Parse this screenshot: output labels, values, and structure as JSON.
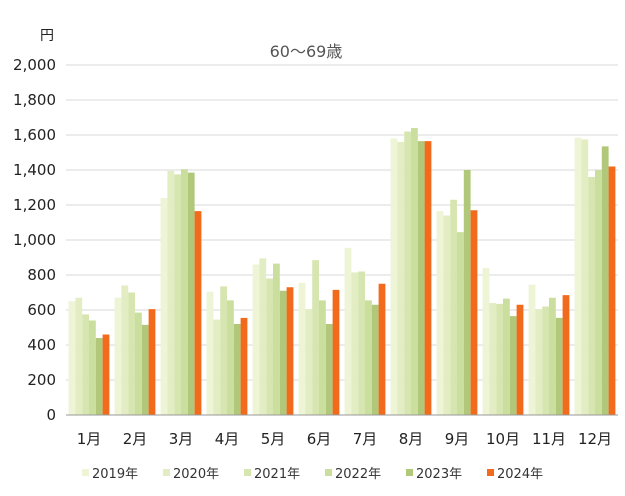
{
  "chart_data": {
    "type": "bar",
    "title": "60～69歳",
    "y_unit": "円",
    "categories": [
      "1月",
      "2月",
      "3月",
      "4月",
      "5月",
      "6月",
      "7月",
      "8月",
      "9月",
      "10月",
      "11月",
      "12月"
    ],
    "ylim": [
      0,
      2000
    ],
    "y_ticks": [
      "0",
      "200",
      "400",
      "600",
      "800",
      "1,000",
      "1,200",
      "1,400",
      "1,600",
      "1,800",
      "2,000"
    ],
    "grid": true,
    "legend_position": "bottom",
    "series": [
      {
        "name": "2019年",
        "color": "#eef4d6",
        "values": [
          650,
          670,
          1240,
          705,
          860,
          755,
          955,
          1580,
          1165,
          840,
          745,
          1585
        ]
      },
      {
        "name": "2020年",
        "color": "#e2edc4",
        "values": [
          670,
          740,
          1395,
          545,
          895,
          605,
          815,
          1560,
          1140,
          640,
          605,
          1575
        ]
      },
      {
        "name": "2021年",
        "color": "#d7e6b0",
        "values": [
          575,
          700,
          1375,
          735,
          780,
          885,
          820,
          1620,
          1230,
          635,
          620,
          1360
        ]
      },
      {
        "name": "2022年",
        "color": "#cadf9d",
        "values": [
          540,
          585,
          1405,
          655,
          865,
          655,
          655,
          1640,
          1045,
          665,
          670,
          1400
        ]
      },
      {
        "name": "2023年",
        "color": "#b1c779",
        "values": [
          440,
          515,
          1385,
          520,
          710,
          520,
          630,
          1565,
          1400,
          565,
          555,
          1535
        ]
      },
      {
        "name": "2024年",
        "color": "#f26b1d",
        "values": [
          460,
          605,
          1165,
          555,
          730,
          715,
          750,
          1565,
          1170,
          630,
          685,
          1420
        ]
      }
    ]
  }
}
